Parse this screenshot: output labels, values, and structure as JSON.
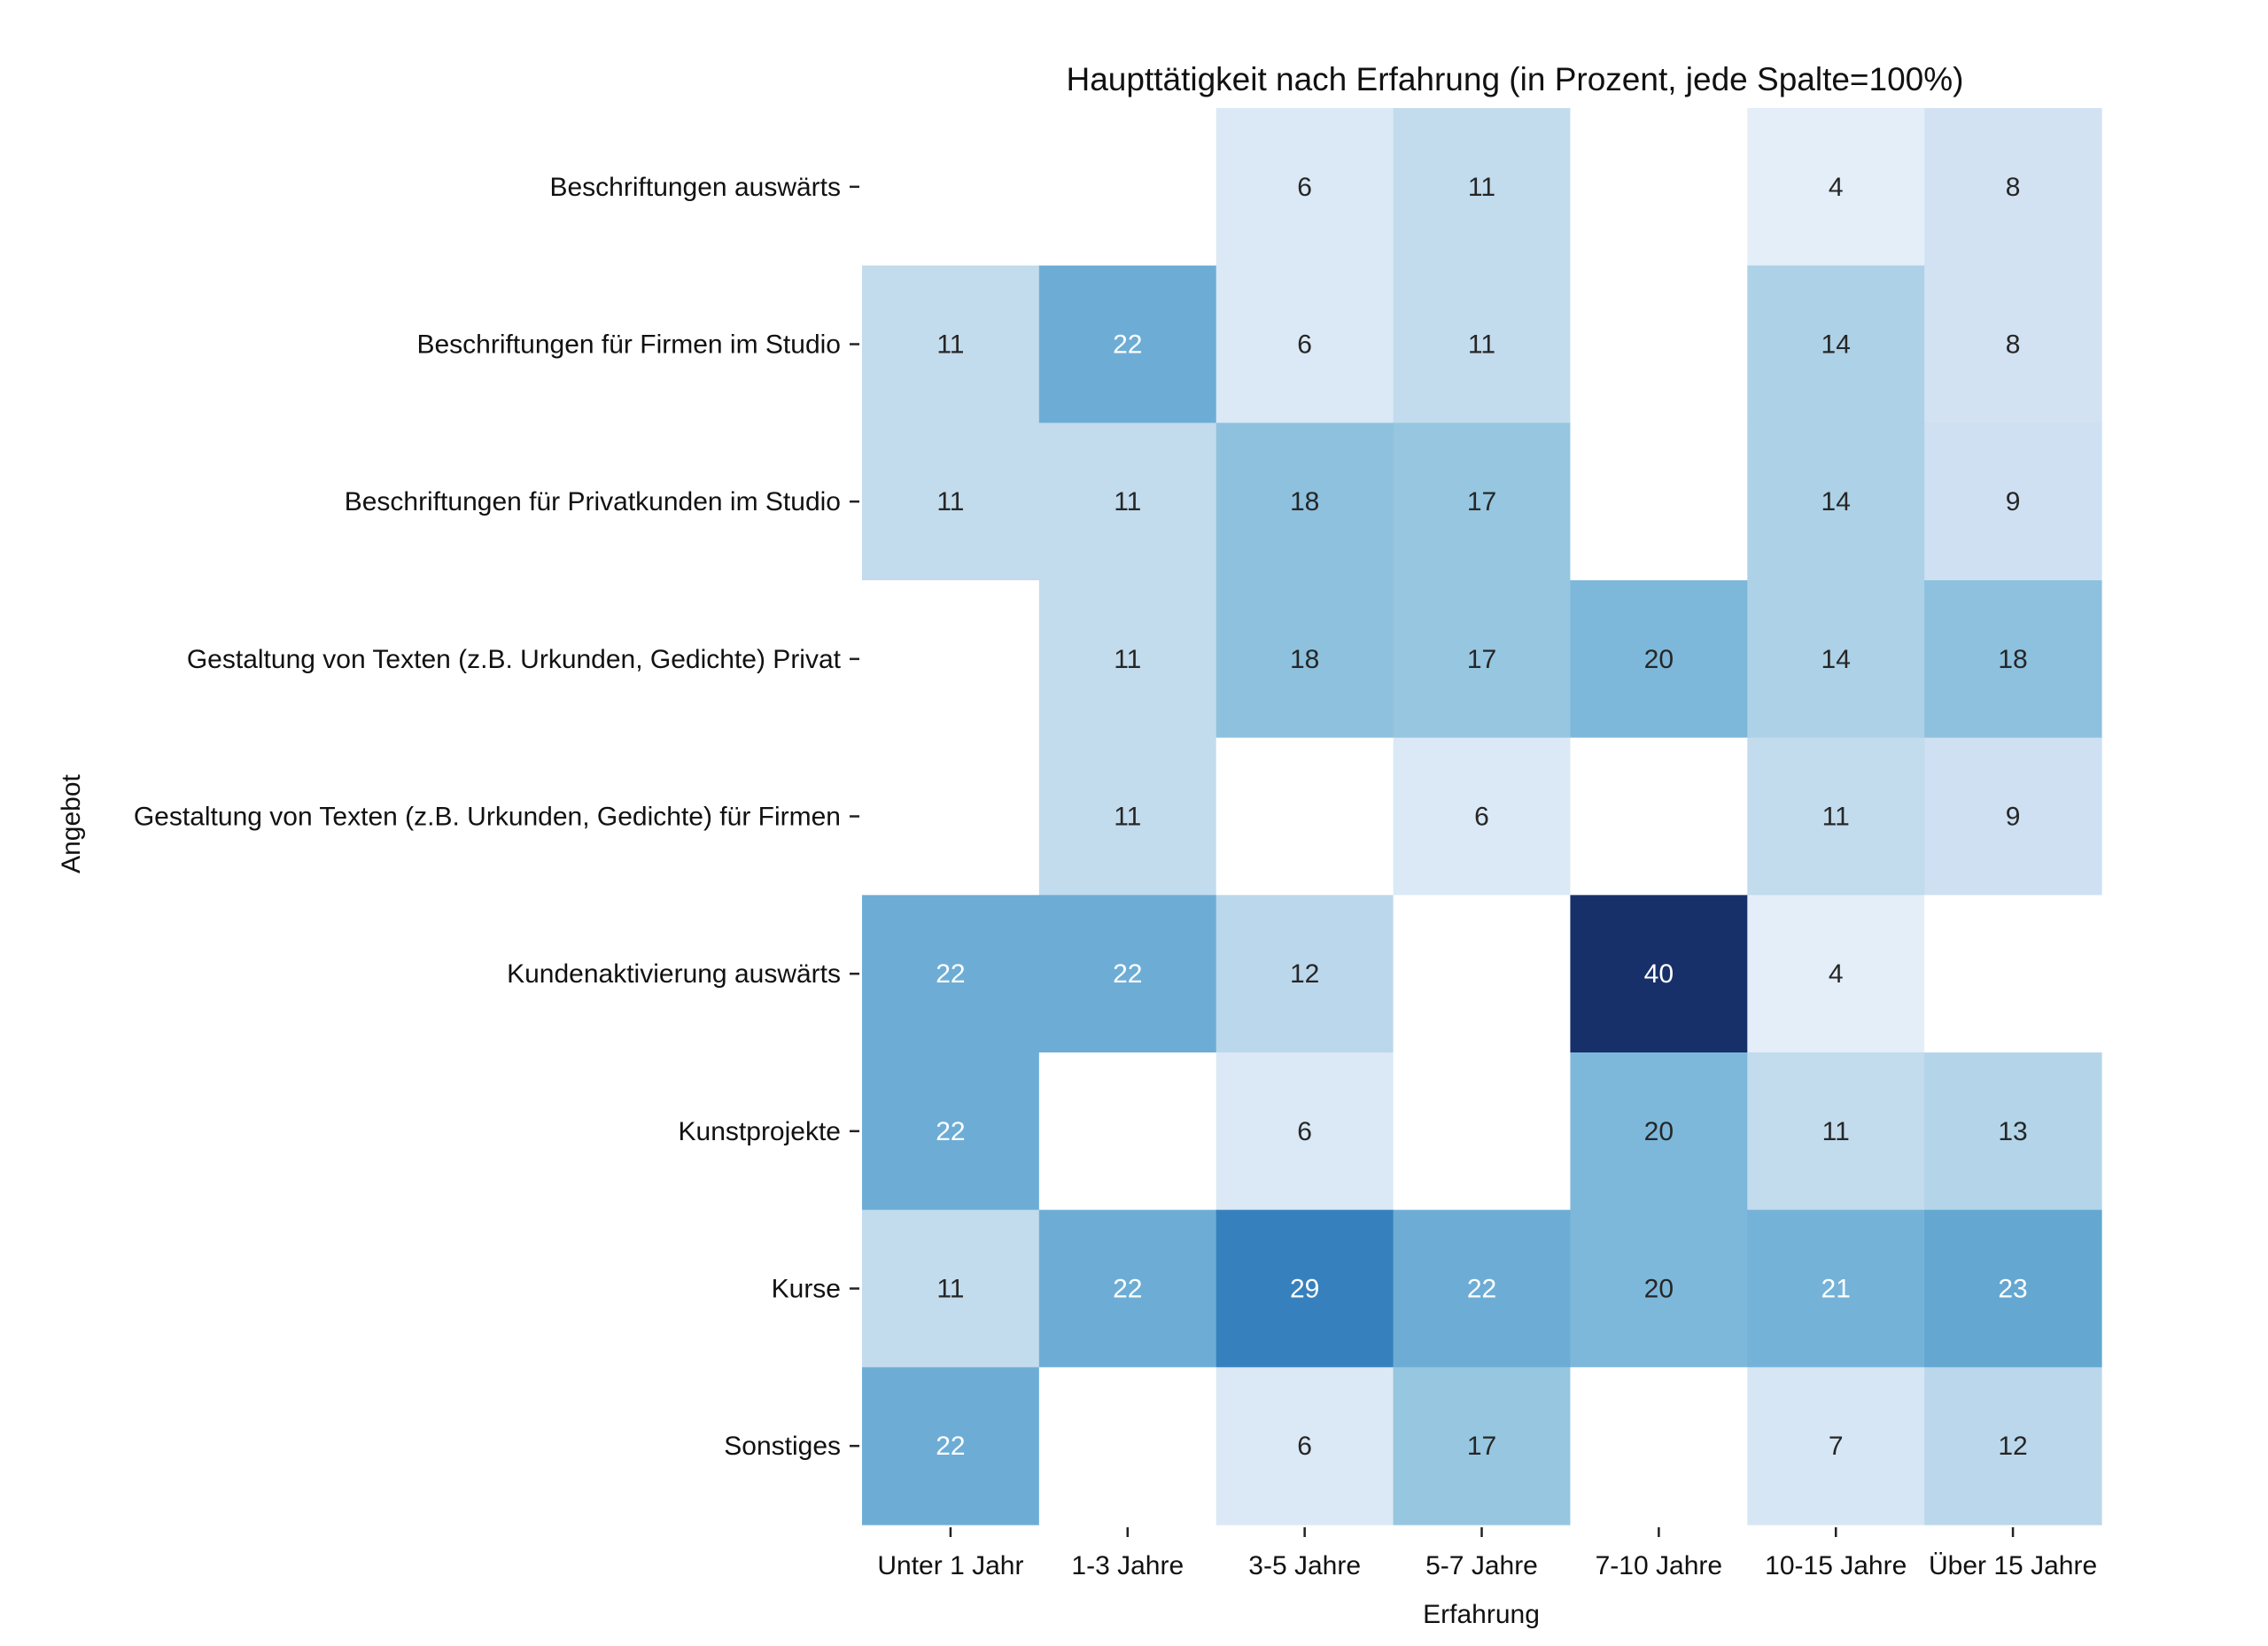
{
  "chart_data": {
    "type": "heatmap",
    "title": "Haupttätigkeit  nach Erfahrung (in Prozent, jede Spalte=100%)",
    "xlabel": "Erfahrung",
    "ylabel": "Angebot",
    "x": [
      "Unter 1 Jahr",
      "1-3 Jahre",
      "3-5 Jahre",
      "5-7 Jahre",
      "7-10 Jahre",
      "10-15 Jahre",
      "Über 15 Jahre"
    ],
    "y": [
      "Beschriftungen auswärts",
      "Beschriftungen für Firmen im Studio",
      "Beschriftungen für Privatkunden im Studio",
      "Gestaltung von Texten (z.B. Urkunden, Gedichte) Privat",
      "Gestaltung von Texten (z.B. Urkunden, Gedichte) für Firmen",
      "Kundenaktivierung auswärts",
      "Kunstprojekte",
      "Kurse",
      "Sonstiges"
    ],
    "values": [
      [
        null,
        null,
        6,
        11,
        null,
        4,
        8
      ],
      [
        11,
        22,
        6,
        11,
        null,
        14,
        8
      ],
      [
        11,
        11,
        18,
        17,
        null,
        14,
        9
      ],
      [
        null,
        11,
        18,
        17,
        20,
        14,
        18
      ],
      [
        null,
        11,
        null,
        6,
        null,
        11,
        9
      ],
      [
        22,
        22,
        12,
        null,
        40,
        4,
        null
      ],
      [
        22,
        null,
        6,
        null,
        20,
        11,
        13
      ],
      [
        11,
        22,
        29,
        22,
        20,
        21,
        23
      ],
      [
        22,
        null,
        6,
        17,
        null,
        7,
        12
      ]
    ],
    "colormap": "Blues",
    "value_range": [
      0,
      40
    ],
    "colorbar": false,
    "grid": false,
    "colors": {
      "empty": "#ffffff",
      "text_dark": "#262626",
      "text_light": "#ffffff"
    }
  }
}
